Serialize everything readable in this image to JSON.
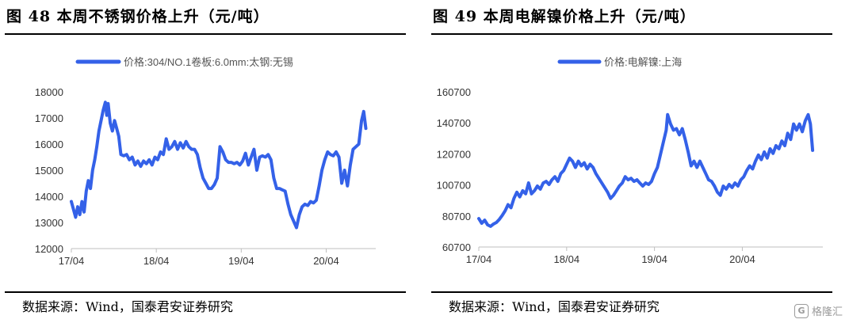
{
  "source_prefix": "数据来源：",
  "source_text": "Wind，国泰君安证券研究",
  "watermark": {
    "logo": "G",
    "text": "格隆汇"
  },
  "chart_data": [
    {
      "type": "line",
      "fig_title": "图 48  本周不锈钢价格上升（元/吨）",
      "series": [
        {
          "name": "价格:304/NO.1卷板:6.0mm:太钢:无锡",
          "color": "#3461e8"
        }
      ],
      "legend_position": "top-center",
      "y_ticks": [
        12000,
        13000,
        14000,
        15000,
        16000,
        17000,
        18000
      ],
      "ylim": [
        12000,
        18000
      ],
      "x_ticks": [
        {
          "label": "17/04",
          "t": 0
        },
        {
          "label": "18/04",
          "t": 12
        },
        {
          "label": "19/04",
          "t": 24
        },
        {
          "label": "20/04",
          "t": 36
        }
      ],
      "x_range": [
        0,
        43
      ],
      "points": [
        [
          0,
          13800
        ],
        [
          0.3,
          13500
        ],
        [
          0.6,
          13200
        ],
        [
          0.9,
          13600
        ],
        [
          1.2,
          13300
        ],
        [
          1.5,
          13800
        ],
        [
          1.8,
          13400
        ],
        [
          2.1,
          14200
        ],
        [
          2.4,
          14600
        ],
        [
          2.7,
          14300
        ],
        [
          3.0,
          15000
        ],
        [
          3.3,
          15400
        ],
        [
          3.6,
          15900
        ],
        [
          3.9,
          16500
        ],
        [
          4.2,
          16900
        ],
        [
          4.5,
          17300
        ],
        [
          4.8,
          17600
        ],
        [
          5.0,
          17100
        ],
        [
          5.2,
          17550
        ],
        [
          5.5,
          16800
        ],
        [
          5.8,
          16500
        ],
        [
          6.1,
          16900
        ],
        [
          6.4,
          16600
        ],
        [
          6.7,
          16300
        ],
        [
          7.0,
          15600
        ],
        [
          7.4,
          15550
        ],
        [
          7.8,
          15600
        ],
        [
          8.2,
          15400
        ],
        [
          8.6,
          15500
        ],
        [
          9.0,
          15200
        ],
        [
          9.4,
          15350
        ],
        [
          9.8,
          15150
        ],
        [
          10.2,
          15350
        ],
        [
          10.6,
          15250
        ],
        [
          11.0,
          15400
        ],
        [
          11.4,
          15200
        ],
        [
          11.8,
          15500
        ],
        [
          12.2,
          15400
        ],
        [
          12.6,
          15700
        ],
        [
          13.0,
          15600
        ],
        [
          13.4,
          16200
        ],
        [
          13.8,
          15800
        ],
        [
          14.2,
          15900
        ],
        [
          14.6,
          16100
        ],
        [
          15.0,
          15800
        ],
        [
          15.4,
          16050
        ],
        [
          15.8,
          15850
        ],
        [
          16.2,
          16100
        ],
        [
          16.6,
          15900
        ],
        [
          17.0,
          15800
        ],
        [
          17.4,
          15800
        ],
        [
          17.8,
          15600
        ],
        [
          18.2,
          15100
        ],
        [
          18.6,
          14700
        ],
        [
          19.0,
          14500
        ],
        [
          19.4,
          14300
        ],
        [
          19.8,
          14300
        ],
        [
          20.2,
          14450
        ],
        [
          20.6,
          14700
        ],
        [
          21.0,
          15900
        ],
        [
          21.4,
          15700
        ],
        [
          21.8,
          15400
        ],
        [
          22.2,
          15300
        ],
        [
          22.6,
          15300
        ],
        [
          23.0,
          15250
        ],
        [
          23.4,
          15300
        ],
        [
          23.8,
          15200
        ],
        [
          24.2,
          15350
        ],
        [
          24.6,
          15650
        ],
        [
          25.0,
          15200
        ],
        [
          25.4,
          15500
        ],
        [
          25.8,
          15800
        ],
        [
          26.2,
          15000
        ],
        [
          26.6,
          15500
        ],
        [
          27.0,
          15550
        ],
        [
          27.4,
          15500
        ],
        [
          27.8,
          15600
        ],
        [
          28.2,
          15400
        ],
        [
          28.6,
          14700
        ],
        [
          29.0,
          14300
        ],
        [
          29.4,
          14300
        ],
        [
          29.8,
          14250
        ],
        [
          30.2,
          14200
        ],
        [
          30.6,
          13700
        ],
        [
          31.0,
          13300
        ],
        [
          31.4,
          13050
        ],
        [
          31.8,
          12800
        ],
        [
          32.2,
          13300
        ],
        [
          32.6,
          13600
        ],
        [
          33.0,
          13700
        ],
        [
          33.4,
          13650
        ],
        [
          33.8,
          13800
        ],
        [
          34.2,
          13750
        ],
        [
          34.6,
          13850
        ],
        [
          35.0,
          14400
        ],
        [
          35.4,
          15000
        ],
        [
          35.8,
          15400
        ],
        [
          36.2,
          15700
        ],
        [
          36.6,
          15600
        ],
        [
          37.0,
          15550
        ],
        [
          37.4,
          15700
        ],
        [
          37.8,
          15500
        ],
        [
          38.2,
          14500
        ],
        [
          38.6,
          15000
        ],
        [
          39.0,
          14400
        ],
        [
          39.4,
          15200
        ],
        [
          39.8,
          15800
        ],
        [
          40.2,
          15900
        ],
        [
          40.6,
          16000
        ],
        [
          41.0,
          16900
        ],
        [
          41.3,
          17250
        ],
        [
          41.6,
          16600
        ]
      ]
    },
    {
      "type": "line",
      "fig_title": "图 49  本周电解镍价格上升（元/吨）",
      "series": [
        {
          "name": "价格:电解镍:上海",
          "color": "#3461e8"
        }
      ],
      "legend_position": "top-center",
      "y_ticks": [
        60700,
        80700,
        100700,
        120700,
        140700,
        160700
      ],
      "ylim": [
        60700,
        160700
      ],
      "x_ticks": [
        {
          "label": "17/04",
          "t": 0
        },
        {
          "label": "18/04",
          "t": 12
        },
        {
          "label": "19/04",
          "t": 24
        },
        {
          "label": "20/04",
          "t": 36
        }
      ],
      "x_range": [
        0,
        47
      ],
      "points": [
        [
          0,
          79000
        ],
        [
          0.4,
          76000
        ],
        [
          0.8,
          78000
        ],
        [
          1.2,
          75000
        ],
        [
          1.6,
          74000
        ],
        [
          2.0,
          75500
        ],
        [
          2.4,
          76500
        ],
        [
          2.8,
          78500
        ],
        [
          3.2,
          81000
        ],
        [
          3.6,
          84000
        ],
        [
          4.0,
          88000
        ],
        [
          4.4,
          86000
        ],
        [
          4.8,
          92000
        ],
        [
          5.2,
          96000
        ],
        [
          5.6,
          93000
        ],
        [
          6.0,
          97000
        ],
        [
          6.4,
          95000
        ],
        [
          6.8,
          102000
        ],
        [
          7.2,
          95000
        ],
        [
          7.6,
          97000
        ],
        [
          8.0,
          100000
        ],
        [
          8.4,
          98000
        ],
        [
          8.8,
          102000
        ],
        [
          9.2,
          103000
        ],
        [
          9.6,
          101000
        ],
        [
          10.0,
          104000
        ],
        [
          10.4,
          106000
        ],
        [
          10.8,
          103000
        ],
        [
          11.2,
          108000
        ],
        [
          11.6,
          110000
        ],
        [
          12.0,
          114000
        ],
        [
          12.4,
          118000
        ],
        [
          12.8,
          116000
        ],
        [
          13.2,
          112000
        ],
        [
          13.6,
          116000
        ],
        [
          14.0,
          113000
        ],
        [
          14.4,
          115000
        ],
        [
          14.8,
          111000
        ],
        [
          15.2,
          114000
        ],
        [
          15.6,
          112000
        ],
        [
          16.0,
          108000
        ],
        [
          16.4,
          105000
        ],
        [
          16.8,
          102000
        ],
        [
          17.2,
          99000
        ],
        [
          17.6,
          96000
        ],
        [
          18.0,
          92000
        ],
        [
          18.4,
          94000
        ],
        [
          18.8,
          97000
        ],
        [
          19.2,
          100000
        ],
        [
          19.6,
          102000
        ],
        [
          20.0,
          106000
        ],
        [
          20.4,
          104000
        ],
        [
          20.8,
          105000
        ],
        [
          21.2,
          103000
        ],
        [
          21.6,
          104000
        ],
        [
          22.0,
          102000
        ],
        [
          22.4,
          100000
        ],
        [
          22.8,
          102000
        ],
        [
          23.2,
          101000
        ],
        [
          23.6,
          103000
        ],
        [
          24.0,
          108000
        ],
        [
          24.4,
          112000
        ],
        [
          24.8,
          120000
        ],
        [
          25.2,
          128000
        ],
        [
          25.6,
          136000
        ],
        [
          25.8,
          146000
        ],
        [
          26.2,
          140000
        ],
        [
          26.6,
          136000
        ],
        [
          27.0,
          137000
        ],
        [
          27.4,
          133000
        ],
        [
          27.8,
          137000
        ],
        [
          28.2,
          130000
        ],
        [
          28.6,
          122000
        ],
        [
          29.0,
          113000
        ],
        [
          29.4,
          116000
        ],
        [
          29.8,
          112000
        ],
        [
          30.2,
          116000
        ],
        [
          30.6,
          112000
        ],
        [
          31.0,
          108000
        ],
        [
          31.4,
          104000
        ],
        [
          31.8,
          103000
        ],
        [
          32.2,
          100000
        ],
        [
          32.6,
          96000
        ],
        [
          33.0,
          94000
        ],
        [
          33.4,
          100000
        ],
        [
          33.8,
          98000
        ],
        [
          34.2,
          101000
        ],
        [
          34.6,
          99000
        ],
        [
          35.0,
          102000
        ],
        [
          35.4,
          100000
        ],
        [
          35.8,
          104000
        ],
        [
          36.2,
          106000
        ],
        [
          36.6,
          110000
        ],
        [
          37.0,
          113000
        ],
        [
          37.4,
          111000
        ],
        [
          37.8,
          116000
        ],
        [
          38.2,
          120000
        ],
        [
          38.6,
          117000
        ],
        [
          39.0,
          122000
        ],
        [
          39.4,
          118000
        ],
        [
          39.8,
          124000
        ],
        [
          40.2,
          121000
        ],
        [
          40.6,
          126000
        ],
        [
          41.0,
          124000
        ],
        [
          41.4,
          129000
        ],
        [
          41.8,
          126000
        ],
        [
          42.2,
          134000
        ],
        [
          42.6,
          130000
        ],
        [
          43.0,
          140000
        ],
        [
          43.4,
          136000
        ],
        [
          43.8,
          140000
        ],
        [
          44.2,
          135000
        ],
        [
          44.6,
          142000
        ],
        [
          45.0,
          146000
        ],
        [
          45.3,
          140000
        ],
        [
          45.6,
          123000
        ]
      ]
    }
  ]
}
